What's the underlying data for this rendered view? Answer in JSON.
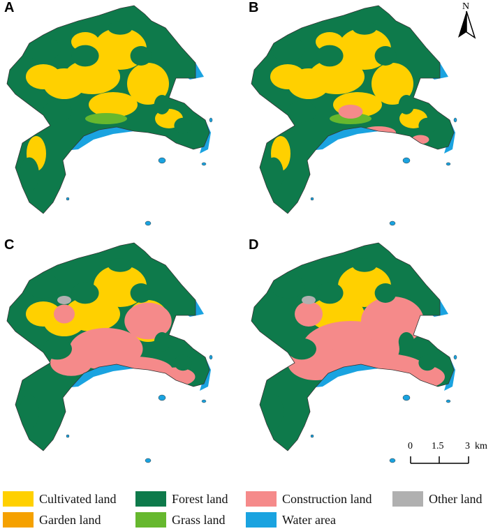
{
  "panels": [
    {
      "label": "A"
    },
    {
      "label": "B"
    },
    {
      "label": "C"
    },
    {
      "label": "D"
    }
  ],
  "north_arrow": {
    "label": "N"
  },
  "scale_bar": {
    "ticks": [
      "0",
      "1.5",
      "3"
    ],
    "unit": "km"
  },
  "legend": [
    {
      "label": "Cultivated land",
      "color": "#FFD000"
    },
    {
      "label": "Forest land",
      "color": "#0E7A4B"
    },
    {
      "label": "Construction land",
      "color": "#F58A8A"
    },
    {
      "label": "Other land",
      "color": "#B0B0B0"
    },
    {
      "label": "Garden land",
      "color": "#F5A100"
    },
    {
      "label": "Grass land",
      "color": "#66B82E"
    },
    {
      "label": "Water area",
      "color": "#1AA3E0"
    }
  ],
  "colors": {
    "cultivated": "#FFD000",
    "forest": "#0E7A4B",
    "construction": "#F58A8A",
    "water": "#1AA3E0",
    "grass": "#66B82E",
    "other": "#B0B0B0"
  }
}
